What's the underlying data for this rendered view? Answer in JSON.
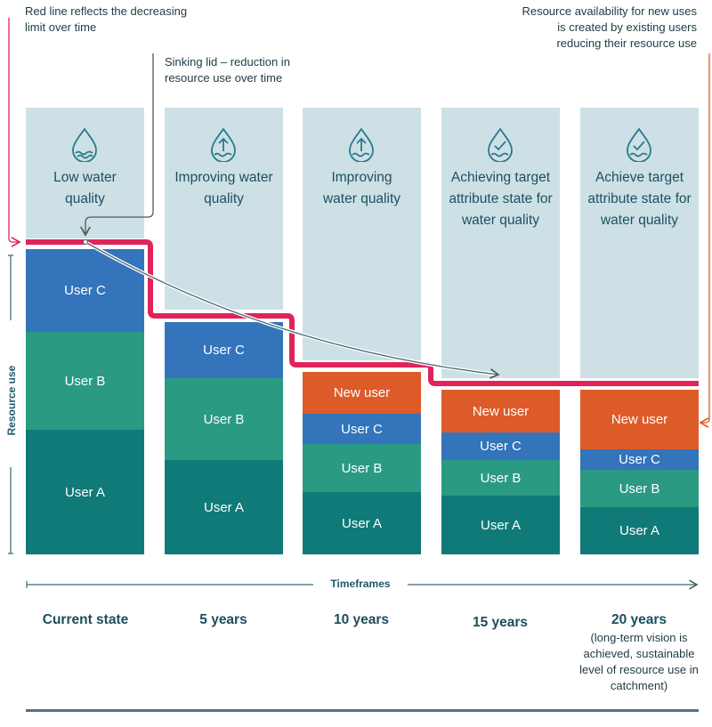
{
  "notes": {
    "red_line": "Red line reflects the decreasing limit over time",
    "sinking_lid": "Sinking lid – reduction in resource use over time",
    "availability": "Resource availability for new uses is created by existing users reducing their resource use"
  },
  "axis": {
    "y_label": "Resource use",
    "x_label": "Timeframes"
  },
  "colors": {
    "user_a": "#0f7a78",
    "user_b": "#2b9a83",
    "user_c": "#3374bb",
    "new_user": "#dd5b28",
    "limit_line": "#e0245a",
    "background": "#cde0e6"
  },
  "columns": [
    {
      "quality": "Low water quality",
      "icon": "water-drop-icon",
      "timeframe": "Current state",
      "segments": {
        "c": "User C",
        "b": "User B",
        "a": "User A"
      }
    },
    {
      "quality": "Improving water quality",
      "icon": "water-drop-up-arrow-icon",
      "timeframe": "5 years",
      "segments": {
        "c": "User C",
        "b": "User B",
        "a": "User A"
      }
    },
    {
      "quality": "Improving water quality",
      "icon": "water-drop-up-arrow-icon",
      "timeframe": "10 years",
      "segments": {
        "n": "New user",
        "c": "User C",
        "b": "User B",
        "a": "User A"
      }
    },
    {
      "quality": "Achieving target attribute state for water quality",
      "icon": "water-drop-check-icon",
      "timeframe": "15 years",
      "segments": {
        "n": "New user",
        "c": "User C",
        "b": "User B",
        "a": "User A"
      }
    },
    {
      "quality": "Achieve target attribute state for water quality",
      "icon": "water-drop-check-icon",
      "timeframe": "20 years",
      "timeframe_note": "(long-term vision is achieved, sustainable level of resource use in catchment)",
      "segments": {
        "n": "New user",
        "c": "User C",
        "b": "User B",
        "a": "User A"
      }
    }
  ]
}
